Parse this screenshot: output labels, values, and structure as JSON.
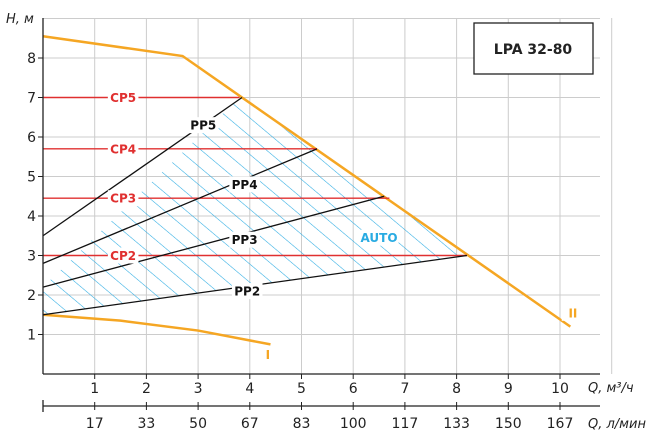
{
  "chart_data": {
    "type": "line",
    "model": "LPA 32-80",
    "ylabel": "H, м",
    "xlabel": "Q, м³/ч",
    "x2label": "Q, л/мин",
    "xlim": [
      0,
      11
    ],
    "ylim": [
      0,
      9
    ],
    "xticks": [
      "1",
      "2",
      "3",
      "4",
      "5",
      "6",
      "7",
      "8",
      "9",
      "10"
    ],
    "x2ticks": [
      "17",
      "33",
      "50",
      "67",
      "83",
      "100",
      "117",
      "133",
      "150",
      "167"
    ],
    "yticks": [
      "1",
      "2",
      "3",
      "4",
      "5",
      "6",
      "7",
      "8"
    ],
    "grid": true,
    "colors": {
      "max_curve": "#F5A623",
      "cp": "#E03030",
      "pp": "#111111",
      "auto": "#29ABE2",
      "grid": "#cccccc"
    },
    "series": [
      {
        "name": "II",
        "x": [
          0,
          2.7,
          10.2
        ],
        "y": [
          8.55,
          8.05,
          1.2
        ]
      },
      {
        "name": "I",
        "x": [
          0,
          1.5,
          3.0,
          4.4
        ],
        "y": [
          1.5,
          1.35,
          1.1,
          0.75
        ]
      },
      {
        "name": "CP5",
        "x": [
          0,
          3.8
        ],
        "y": [
          7.0,
          7.0
        ]
      },
      {
        "name": "CP4",
        "x": [
          0,
          5.3
        ],
        "y": [
          5.7,
          5.7
        ]
      },
      {
        "name": "CP3",
        "x": [
          0,
          6.7
        ],
        "y": [
          4.45,
          4.45
        ]
      },
      {
        "name": "CP2",
        "x": [
          0,
          8.2
        ],
        "y": [
          3.0,
          3.0
        ]
      },
      {
        "name": "PP5",
        "x": [
          0,
          3.85
        ],
        "y": [
          3.5,
          7.0
        ]
      },
      {
        "name": "PP4",
        "x": [
          0,
          5.3
        ],
        "y": [
          2.8,
          5.7
        ]
      },
      {
        "name": "PP3",
        "x": [
          0,
          6.6
        ],
        "y": [
          2.2,
          4.5
        ]
      },
      {
        "name": "PP2",
        "x": [
          0,
          8.2
        ],
        "y": [
          1.5,
          3.0
        ]
      }
    ],
    "auto_region": {
      "name": "AUTO",
      "x": [
        0,
        3.8,
        8.2,
        0
      ],
      "y": [
        2.2,
        7.0,
        3.0,
        1.5
      ]
    },
    "labels": {
      "CP5": {
        "text": "CP5",
        "x": 1.55,
        "y": 7.0
      },
      "CP4": {
        "text": "CP4",
        "x": 1.55,
        "y": 5.7
      },
      "CP3": {
        "text": "CP3",
        "x": 1.55,
        "y": 4.45
      },
      "CP2": {
        "text": "CP2",
        "x": 1.55,
        "y": 3.0
      },
      "PP5": {
        "text": "PP5",
        "x": 3.1,
        "y": 6.3
      },
      "PP4": {
        "text": "PP4",
        "x": 3.9,
        "y": 4.8
      },
      "PP3": {
        "text": "PP3",
        "x": 3.9,
        "y": 3.4
      },
      "PP2": {
        "text": "PP2",
        "x": 3.95,
        "y": 2.1
      },
      "AUTO": {
        "text": "AUTO",
        "x": 6.5,
        "y": 3.45
      },
      "I": {
        "text": "I",
        "x": 4.35,
        "y": 0.5
      },
      "II": {
        "text": "II",
        "x": 10.25,
        "y": 1.55
      }
    }
  }
}
